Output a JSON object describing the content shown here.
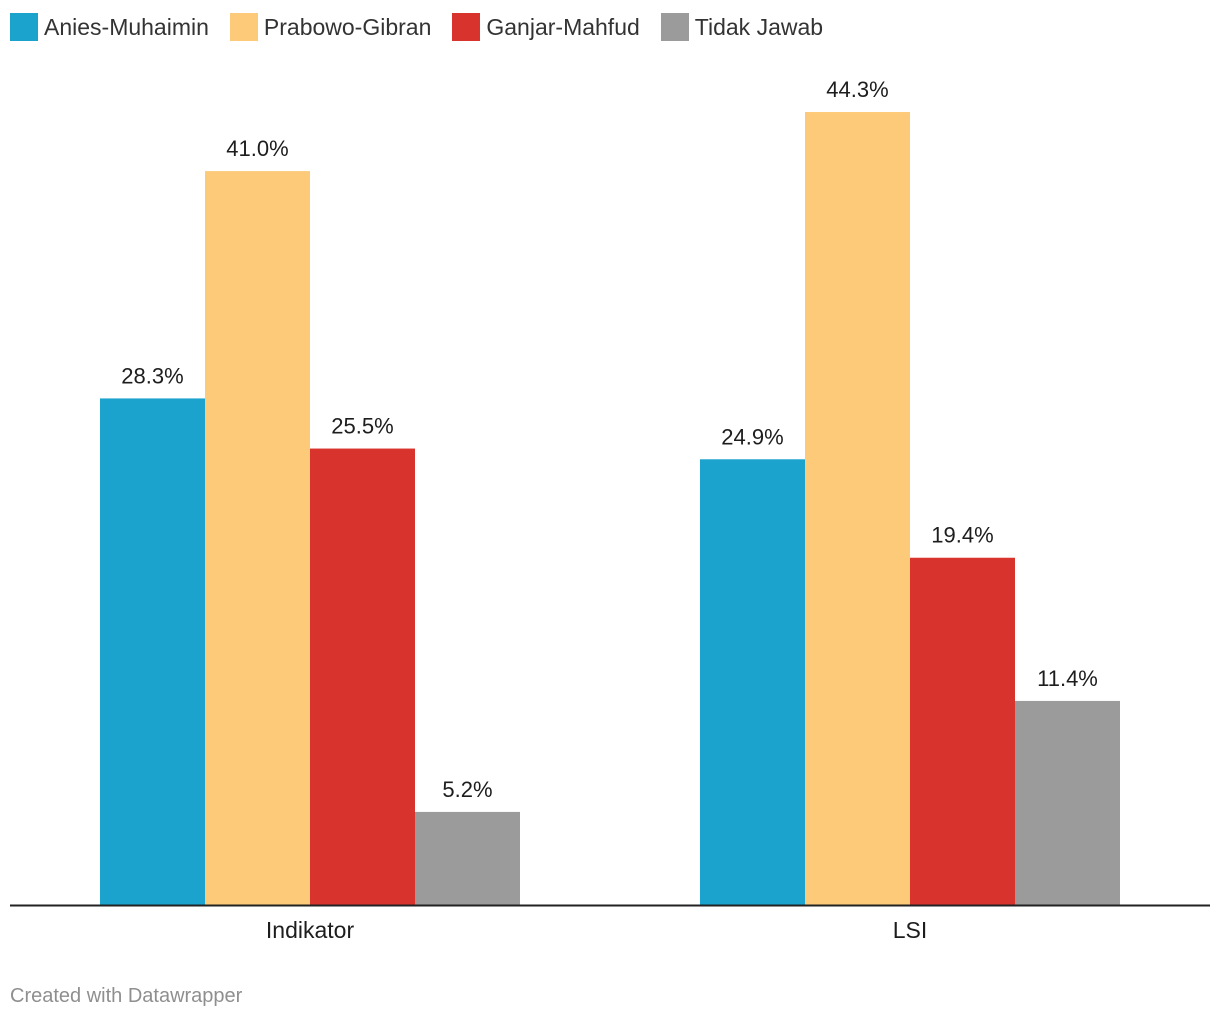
{
  "chart_data": {
    "type": "bar",
    "title": "",
    "xlabel": "",
    "ylabel": "",
    "ylim": [
      0,
      45
    ],
    "grid": false,
    "legend_position": "top-left",
    "categories": [
      "Indikator",
      "LSI"
    ],
    "series": [
      {
        "name": "Anies-Muhaimin",
        "color": "#1ba2cd",
        "values": [
          28.3,
          24.9
        ],
        "labels": [
          "28.3%",
          "24.9%"
        ]
      },
      {
        "name": "Prabowo-Gibran",
        "color": "#fdca79",
        "values": [
          41.0,
          44.3
        ],
        "labels": [
          "41.0%",
          "44.3%"
        ]
      },
      {
        "name": "Ganjar-Mahfud",
        "color": "#d8342d",
        "values": [
          25.5,
          19.4
        ],
        "labels": [
          "25.5%",
          "19.4%"
        ]
      },
      {
        "name": "Tidak Jawab",
        "color": "#9b9b9b",
        "values": [
          5.2,
          11.4
        ],
        "labels": [
          "5.2%",
          "11.4%"
        ]
      }
    ]
  },
  "footer": "Created with Datawrapper"
}
